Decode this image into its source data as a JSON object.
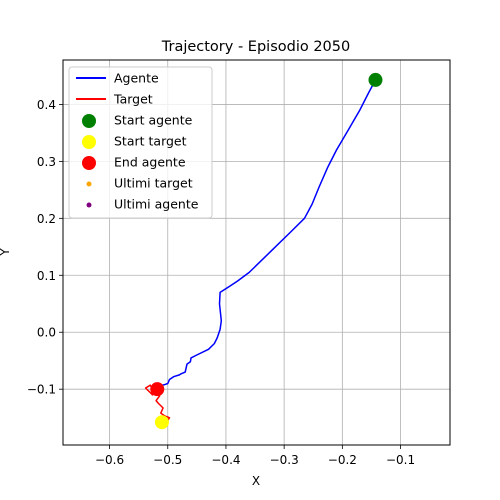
{
  "chart_data": {
    "type": "scatter",
    "title": "Trajectory - Episodio 2050",
    "xlabel": "X",
    "ylabel": "Y",
    "xlim": [
      -0.68,
      -0.015
    ],
    "ylim": [
      -0.198,
      0.478
    ],
    "xticks": [
      -0.6,
      -0.5,
      -0.4,
      -0.3,
      -0.2,
      -0.1
    ],
    "xtick_labels": [
      "−0.6",
      "−0.5",
      "−0.4",
      "−0.3",
      "−0.2",
      "−0.1"
    ],
    "yticks": [
      -0.1,
      0.0,
      0.1,
      0.2,
      0.3,
      0.4
    ],
    "ytick_labels": [
      "−0.1",
      "0.0",
      "0.1",
      "0.2",
      "0.3",
      "0.4"
    ],
    "grid": true,
    "legend": "top-left",
    "series": [
      {
        "name": "Agente",
        "kind": "line",
        "color": "#0000ff",
        "x": [
          -0.143,
          -0.155,
          -0.17,
          -0.19,
          -0.21,
          -0.225,
          -0.24,
          -0.252,
          -0.265,
          -0.29,
          -0.32,
          -0.36,
          -0.38,
          -0.395,
          -0.41,
          -0.411,
          -0.409,
          -0.408,
          -0.41,
          -0.415,
          -0.42,
          -0.43,
          -0.45,
          -0.46,
          -0.461,
          -0.467,
          -0.47,
          -0.477,
          -0.48,
          -0.49,
          -0.497,
          -0.5,
          -0.505,
          -0.51,
          -0.515,
          -0.52
        ],
        "y": [
          0.443,
          0.42,
          0.39,
          0.355,
          0.32,
          0.29,
          0.255,
          0.225,
          0.2,
          0.175,
          0.145,
          0.105,
          0.09,
          0.08,
          0.07,
          0.05,
          0.03,
          0.02,
          0.005,
          -0.01,
          -0.02,
          -0.03,
          -0.04,
          -0.045,
          -0.052,
          -0.056,
          -0.07,
          -0.073,
          -0.075,
          -0.078,
          -0.083,
          -0.09,
          -0.092,
          -0.093,
          -0.097,
          -0.1
        ]
      },
      {
        "name": "Target",
        "kind": "line",
        "color": "#ff0000",
        "x": [
          -0.51,
          -0.503,
          -0.5,
          -0.497,
          -0.505,
          -0.512,
          -0.508,
          -0.516,
          -0.52,
          -0.514,
          -0.522,
          -0.518,
          -0.526,
          -0.53,
          -0.538,
          -0.532,
          -0.526,
          -0.518,
          -0.512,
          -0.516,
          -0.522,
          -0.517
        ],
        "y": [
          -0.158,
          -0.162,
          -0.155,
          -0.15,
          -0.147,
          -0.142,
          -0.133,
          -0.125,
          -0.12,
          -0.112,
          -0.105,
          -0.097,
          -0.1,
          -0.093,
          -0.098,
          -0.104,
          -0.11,
          -0.104,
          -0.1,
          -0.094,
          -0.098,
          -0.1
        ]
      },
      {
        "name": "Start agente",
        "kind": "point",
        "color": "#008000",
        "x": [
          -0.143
        ],
        "y": [
          0.443
        ]
      },
      {
        "name": "Start target",
        "kind": "point",
        "color": "#ffff00",
        "x": [
          -0.51
        ],
        "y": [
          -0.158
        ]
      },
      {
        "name": "End agente",
        "kind": "point",
        "color": "#ff0000",
        "x": [
          -0.518
        ],
        "y": [
          -0.1
        ]
      },
      {
        "name": "Ultimi target",
        "kind": "point-small",
        "color": "#ffa500",
        "x": [],
        "y": []
      },
      {
        "name": "Ultimi agente",
        "kind": "point-small",
        "color": "#800080",
        "x": [],
        "y": []
      }
    ]
  }
}
